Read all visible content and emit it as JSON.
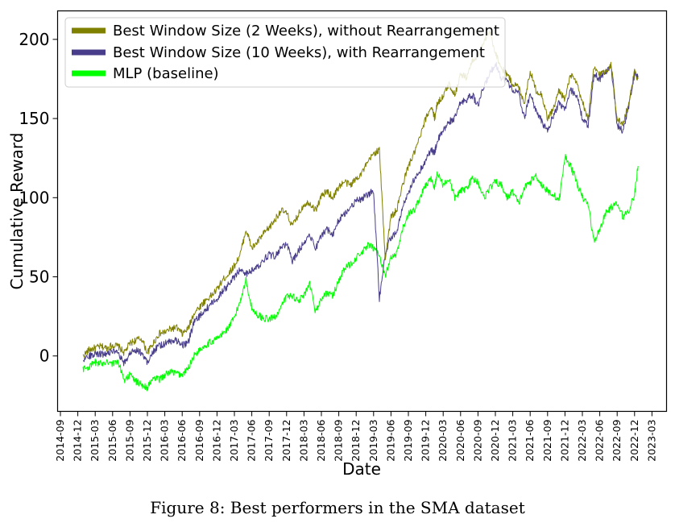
{
  "chart_data": {
    "type": "line",
    "xlabel": "Date",
    "ylabel": "Cumulative Reward",
    "ylim": [
      -35,
      218
    ],
    "yticks": [
      0,
      50,
      100,
      150,
      200
    ],
    "xticks": [
      "2014-09",
      "2014-12",
      "2015-03",
      "2015-06",
      "2015-09",
      "2015-12",
      "2016-03",
      "2016-06",
      "2016-09",
      "2016-12",
      "2017-03",
      "2017-06",
      "2017-09",
      "2017-12",
      "2018-03",
      "2018-06",
      "2018-09",
      "2018-12",
      "2019-03",
      "2019-06",
      "2019-09",
      "2019-12",
      "2020-03",
      "2020-06",
      "2020-09",
      "2020-12",
      "2021-03",
      "2021-06",
      "2021-09",
      "2021-12",
      "2022-03",
      "2022-06",
      "2022-09",
      "2022-12",
      "2023-03"
    ],
    "legend_position": "top-left",
    "x_unit": "months since 2014-09",
    "series": [
      {
        "name": "Best Window Size (2 Weeks), without Rearrangement",
        "color": "#808000",
        "x": [
          3.9,
          5,
          6,
          7,
          8,
          9,
          10,
          11,
          12,
          13,
          14,
          15,
          16,
          17,
          18,
          19,
          20,
          21,
          22,
          23,
          24,
          25,
          26,
          27,
          28,
          29,
          30,
          31,
          32,
          33,
          34,
          35,
          36,
          37,
          38,
          39,
          40,
          41,
          42,
          43,
          44,
          45,
          46,
          47,
          48,
          49,
          50,
          51,
          52,
          53,
          54,
          55,
          56,
          57,
          58,
          59,
          60,
          61,
          62,
          63,
          64,
          64.5,
          65,
          66,
          67,
          68,
          69,
          70,
          71,
          72,
          73,
          74,
          75,
          76,
          77,
          78,
          79,
          80,
          81,
          82,
          83,
          84,
          85,
          86,
          87,
          88,
          89,
          90,
          91,
          92,
          93,
          94,
          95,
          96,
          97,
          98,
          99,
          99.6
        ],
        "values": [
          0,
          4,
          5,
          6,
          5,
          7,
          6,
          2,
          8,
          10,
          11,
          2,
          8,
          14,
          15,
          17,
          18,
          14,
          17,
          27,
          31,
          35,
          38,
          42,
          48,
          52,
          57,
          64,
          80,
          68,
          72,
          77,
          81,
          86,
          92,
          90,
          82,
          89,
          96,
          97,
          92,
          101,
          104,
          100,
          107,
          110,
          108,
          112,
          116,
          122,
          128,
          130,
          62,
          88,
          92,
          108,
          120,
          128,
          138,
          150,
          158,
          150,
          160,
          164,
          172,
          165,
          178,
          176,
          186,
          190,
          198,
          205,
          192,
          182,
          178,
          172,
          170,
          160,
          180,
          168,
          165,
          150,
          156,
          168,
          162,
          178,
          172,
          160,
          150,
          182,
          178,
          180,
          184,
          150,
          146,
          160,
          180,
          175
        ]
      },
      {
        "name": "Best Window Size (10 Weeks), with Rearrangement",
        "color": "#483d8b",
        "x": [
          3.9,
          5,
          6,
          7,
          8,
          9,
          10,
          11,
          12,
          13,
          14,
          15,
          16,
          17,
          18,
          19,
          20,
          21,
          22,
          23,
          24,
          25,
          26,
          27,
          28,
          29,
          30,
          31,
          32,
          33,
          34,
          35,
          36,
          37,
          38,
          39,
          40,
          41,
          42,
          43,
          44,
          45,
          46,
          47,
          48,
          49,
          50,
          51,
          52,
          53,
          54,
          55,
          56,
          57,
          58,
          59,
          60,
          61,
          62,
          63,
          64,
          64.5,
          65,
          66,
          67,
          68,
          69,
          70,
          71,
          72,
          73,
          74,
          75,
          76,
          77,
          78,
          79,
          80,
          81,
          82,
          83,
          84,
          85,
          86,
          87,
          88,
          89,
          90,
          91,
          92,
          93,
          94,
          95,
          96,
          97,
          98,
          99,
          99.6
        ],
        "values": [
          -2,
          0,
          2,
          1,
          2,
          3,
          1,
          -5,
          2,
          4,
          2,
          -4,
          3,
          6,
          8,
          9,
          10,
          7,
          8,
          21,
          25,
          29,
          33,
          36,
          41,
          45,
          50,
          55,
          52,
          54,
          56,
          61,
          64,
          63,
          68,
          71,
          60,
          66,
          72,
          77,
          68,
          76,
          80,
          77,
          86,
          90,
          94,
          98,
          99,
          102,
          104,
          36,
          65,
          75,
          78,
          94,
          102,
          112,
          117,
          124,
          130,
          128,
          136,
          142,
          148,
          150,
          160,
          162,
          165,
          158,
          170,
          178,
          185,
          176,
          174,
          168,
          166,
          150,
          166,
          155,
          148,
          142,
          152,
          160,
          156,
          168,
          165,
          150,
          145,
          178,
          175,
          180,
          182,
          146,
          142,
          158,
          178,
          176
        ]
      },
      {
        "name": "MLP (baseline)",
        "color": "#00ff00",
        "x": [
          3.9,
          5,
          6,
          7,
          8,
          9,
          10,
          11,
          12,
          13,
          14,
          15,
          16,
          17,
          18,
          19,
          20,
          21,
          22,
          23,
          24,
          25,
          26,
          27,
          28,
          29,
          30,
          31,
          32,
          33,
          34,
          35,
          36,
          37,
          38,
          39,
          40,
          41,
          42,
          43,
          44,
          45,
          46,
          47,
          48,
          49,
          50,
          51,
          52,
          53,
          54,
          55,
          56,
          57,
          58,
          59,
          60,
          61,
          62,
          63,
          64,
          64.5,
          65,
          66,
          67,
          68,
          69,
          70,
          71,
          72,
          73,
          74,
          75,
          76,
          77,
          78,
          79,
          80,
          81,
          82,
          83,
          84,
          85,
          86,
          87,
          88,
          89,
          90,
          91,
          92,
          93,
          94,
          95,
          96,
          97,
          98,
          99,
          99.6
        ],
        "values": [
          -8,
          -7,
          -4,
          -5,
          -3,
          -5,
          -4,
          -15,
          -12,
          -16,
          -18,
          -20,
          -14,
          -15,
          -12,
          -10,
          -11,
          -12,
          -8,
          0,
          4,
          7,
          9,
          11,
          14,
          18,
          24,
          35,
          48,
          30,
          26,
          24,
          23,
          25,
          30,
          38,
          38,
          35,
          38,
          45,
          28,
          36,
          40,
          38,
          48,
          55,
          58,
          62,
          65,
          70,
          68,
          64,
          50,
          62,
          64,
          80,
          90,
          92,
          100,
          108,
          112,
          106,
          116,
          108,
          112,
          100,
          104,
          106,
          112,
          110,
          100,
          106,
          110,
          108,
          100,
          104,
          96,
          106,
          110,
          114,
          108,
          104,
          102,
          98,
          126,
          120,
          110,
          100,
          96,
          72,
          80,
          90,
          94,
          96,
          88,
          92,
          102,
          120
        ]
      }
    ]
  },
  "caption": "Figure 8: Best performers in the SMA dataset"
}
